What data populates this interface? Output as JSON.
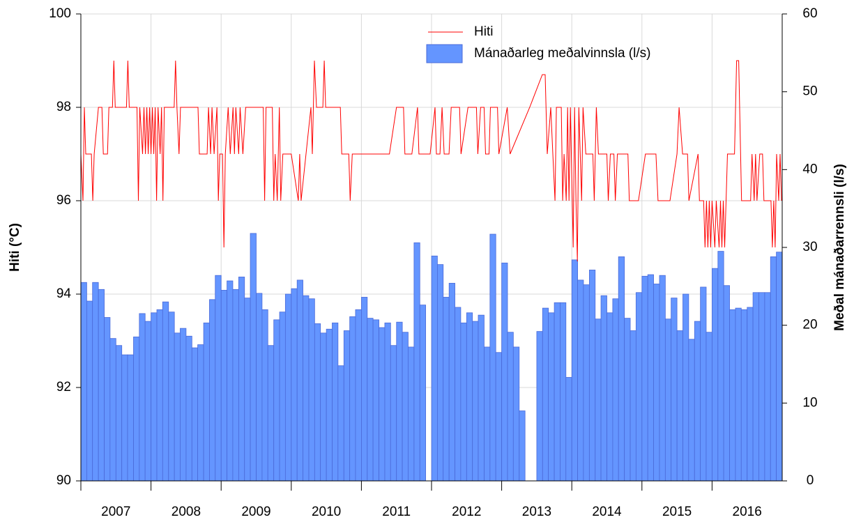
{
  "chart_data": {
    "type": "combo",
    "y_label": "Hiti (°C)",
    "y2_label": "Meðal mánaðarrennsli (l/s)",
    "xlim": [
      2007,
      2017
    ],
    "xticks": [
      {
        "value": 2007.5,
        "label": "2007"
      },
      {
        "value": 2008.5,
        "label": "2008"
      },
      {
        "value": 2009.5,
        "label": "2009"
      },
      {
        "value": 2010.5,
        "label": "2010"
      },
      {
        "value": 2011.5,
        "label": "2011"
      },
      {
        "value": 2012.5,
        "label": "2012"
      },
      {
        "value": 2013.5,
        "label": "2013"
      },
      {
        "value": 2014.5,
        "label": "2014"
      },
      {
        "value": 2015.5,
        "label": "2015"
      },
      {
        "value": 2016.5,
        "label": "2016"
      }
    ],
    "xgrid": [
      2007,
      2008,
      2009,
      2010,
      2011,
      2012,
      2013,
      2014,
      2015,
      2016
    ],
    "ylim": [
      90,
      100
    ],
    "yticks": [
      90,
      92,
      94,
      96,
      98,
      100
    ],
    "y2lim": [
      0,
      60
    ],
    "y2ticks": [
      0,
      10,
      20,
      30,
      40,
      50,
      60
    ],
    "grid": true,
    "legend": "top",
    "series": [
      {
        "name": "Hiti",
        "type": "line",
        "color": "#ff0000",
        "axis": "y",
        "x": [
          2007.0,
          2007.03,
          2007.05,
          2007.07,
          2007.15,
          2007.17,
          2007.19,
          2007.25,
          2007.3,
          2007.32,
          2007.38,
          2007.4,
          2007.45,
          2007.47,
          2007.49,
          2007.65,
          2007.67,
          2007.69,
          2007.8,
          2007.82,
          2007.84,
          2007.88,
          2007.9,
          2007.92,
          2007.94,
          2007.96,
          2007.98,
          2008.0,
          2008.02,
          2008.04,
          2008.06,
          2008.08,
          2008.1,
          2008.13,
          2008.15,
          2008.17,
          2008.19,
          2008.33,
          2008.35,
          2008.37,
          2008.4,
          2008.42,
          2008.67,
          2008.69,
          2008.8,
          2008.82,
          2008.85,
          2008.87,
          2008.9,
          2008.94,
          2008.96,
          2008.98,
          2009.02,
          2009.04,
          2009.06,
          2009.1,
          2009.13,
          2009.17,
          2009.19,
          2009.21,
          2009.25,
          2009.27,
          2009.31,
          2009.35,
          2009.6,
          2009.62,
          2009.64,
          2009.73,
          2009.75,
          2009.77,
          2009.8,
          2009.83,
          2009.85,
          2009.88,
          2010.0,
          2010.1,
          2010.12,
          2010.14,
          2010.28,
          2010.3,
          2010.33,
          2010.36,
          2010.45,
          2010.47,
          2010.49,
          2010.7,
          2010.72,
          2010.82,
          2010.84,
          2010.87,
          2011.4,
          2011.5,
          2011.6,
          2011.62,
          2011.72,
          2011.8,
          2011.82,
          2011.98,
          2012.05,
          2012.07,
          2012.12,
          2012.15,
          2012.18,
          2012.25,
          2012.28,
          2012.4,
          2012.42,
          2012.52,
          2012.64,
          2012.66,
          2012.7,
          2012.75,
          2012.77,
          2012.82,
          2012.84,
          2012.94,
          2012.96,
          2013.08,
          2013.12,
          2013.4,
          2013.58,
          2013.62,
          2013.65,
          2013.7,
          2013.73,
          2013.76,
          2013.78,
          2013.85,
          2013.87,
          2013.89,
          2013.92,
          2013.94,
          2013.96,
          2013.98,
          2014.02,
          2014.04,
          2014.06,
          2014.08,
          2014.1,
          2014.12,
          2014.14,
          2014.16,
          2014.2,
          2014.3,
          2014.32,
          2014.35,
          2014.38,
          2014.5,
          2014.52,
          2014.55,
          2014.6,
          2014.62,
          2014.65,
          2014.8,
          2014.82,
          2014.95,
          2015.05,
          2015.2,
          2015.23,
          2015.4,
          2015.5,
          2015.53,
          2015.58,
          2015.65,
          2015.67,
          2015.8,
          2015.82,
          2015.88,
          2015.9,
          2015.92,
          2015.94,
          2015.96,
          2015.98,
          2016.0,
          2016.04,
          2016.06,
          2016.1,
          2016.12,
          2016.14,
          2016.16,
          2016.18,
          2016.22,
          2016.32,
          2016.35,
          2016.38,
          2016.42,
          2016.55,
          2016.57,
          2016.6,
          2016.62,
          2016.64,
          2016.68,
          2016.72,
          2016.74,
          2016.84,
          2016.86,
          2016.88,
          2016.9,
          2016.92,
          2016.95,
          2016.97,
          2016.99
        ],
        "values": [
          97,
          96,
          98,
          97,
          97,
          96,
          97,
          98,
          98,
          97,
          97,
          98,
          98,
          99,
          98,
          98,
          99,
          98,
          98,
          96,
          98,
          97,
          98,
          97,
          98,
          97,
          98,
          97,
          98,
          97,
          98,
          96,
          98,
          97,
          98,
          96,
          98,
          98,
          99,
          98,
          97,
          98,
          98,
          97,
          97,
          98,
          97,
          98,
          97,
          98,
          96,
          97,
          97,
          95,
          97,
          98,
          97,
          98,
          97,
          98,
          97,
          98,
          97,
          98,
          98,
          96,
          98,
          98,
          96,
          97,
          96,
          98,
          96,
          97,
          97,
          96,
          97,
          96,
          98,
          97,
          99,
          98,
          98,
          99,
          98,
          98,
          97,
          97,
          96,
          97,
          97,
          98,
          98,
          97,
          97,
          98,
          97,
          97,
          98,
          97,
          97,
          98,
          97,
          97,
          98,
          98,
          97,
          98,
          98,
          97,
          98,
          98,
          97,
          97,
          98,
          98,
          97,
          98,
          97,
          98,
          98.7,
          98.7,
          97,
          98,
          97,
          96,
          98,
          98,
          96,
          97,
          96,
          98,
          96,
          98,
          95,
          98,
          96,
          94.7,
          98,
          97,
          96,
          98,
          97,
          97,
          96,
          98,
          97,
          97,
          96,
          97,
          97,
          96,
          97,
          97,
          96,
          96,
          97,
          97,
          96,
          96,
          97,
          98,
          97,
          97,
          96,
          97,
          96,
          96,
          95,
          96,
          95,
          96,
          95,
          96,
          95,
          96,
          95,
          96,
          95,
          96,
          95,
          97,
          97,
          99,
          99,
          96,
          96,
          97,
          96,
          97,
          96,
          97,
          97,
          96,
          96,
          95,
          96,
          95,
          97,
          96,
          97,
          96
        ]
      },
      {
        "name": "Mánaðarleg meðalvinnsla (l/s)",
        "type": "bar",
        "color": "#6495ff",
        "axis": "y2",
        "x": [
          2007.042,
          2007.125,
          2007.208,
          2007.292,
          2007.375,
          2007.458,
          2007.542,
          2007.625,
          2007.708,
          2007.792,
          2007.875,
          2007.958,
          2008.042,
          2008.125,
          2008.208,
          2008.292,
          2008.375,
          2008.458,
          2008.542,
          2008.625,
          2008.708,
          2008.792,
          2008.875,
          2008.958,
          2009.042,
          2009.125,
          2009.208,
          2009.292,
          2009.375,
          2009.458,
          2009.542,
          2009.625,
          2009.708,
          2009.792,
          2009.875,
          2009.958,
          2010.042,
          2010.125,
          2010.208,
          2010.292,
          2010.375,
          2010.458,
          2010.542,
          2010.625,
          2010.708,
          2010.792,
          2010.875,
          2010.958,
          2011.042,
          2011.125,
          2011.208,
          2011.292,
          2011.375,
          2011.458,
          2011.542,
          2011.625,
          2011.708,
          2011.792,
          2011.875,
          2011.958,
          2012.042,
          2012.125,
          2012.208,
          2012.292,
          2012.375,
          2012.458,
          2012.542,
          2012.625,
          2012.708,
          2012.792,
          2012.875,
          2012.958,
          2013.042,
          2013.125,
          2013.208,
          2013.292,
          2013.375,
          2013.458,
          2013.542,
          2013.625,
          2013.708,
          2013.792,
          2013.875,
          2013.958,
          2014.042,
          2014.125,
          2014.208,
          2014.292,
          2014.375,
          2014.458,
          2014.542,
          2014.625,
          2014.708,
          2014.792,
          2014.875,
          2014.958,
          2015.042,
          2015.125,
          2015.208,
          2015.292,
          2015.375,
          2015.458,
          2015.542,
          2015.625,
          2015.708,
          2015.792,
          2015.875,
          2015.958,
          2016.042,
          2016.125,
          2016.208,
          2016.292,
          2016.375,
          2016.458,
          2016.542,
          2016.625,
          2016.708,
          2016.792,
          2016.875,
          2016.958
        ],
        "values": [
          25.5,
          23.1,
          25.5,
          24.6,
          21,
          18.3,
          17.4,
          16.2,
          16.2,
          18.5,
          21.5,
          20.5,
          21.6,
          22,
          23,
          21.7,
          19,
          19.6,
          18.6,
          17.1,
          17.5,
          20.3,
          23.3,
          26.4,
          24.5,
          25.7,
          24.6,
          26.2,
          23.5,
          31.8,
          24.1,
          22,
          17.4,
          20.7,
          21.7,
          24,
          24.7,
          25.8,
          23.8,
          23.4,
          20.2,
          19,
          19.5,
          20.3,
          14.8,
          19.3,
          21.1,
          22,
          23.6,
          20.9,
          20.7,
          19.7,
          20.3,
          17.4,
          20.4,
          19.1,
          17.2,
          30.6,
          22.6,
          0,
          28.9,
          27.8,
          23.6,
          25.4,
          22.3,
          20.3,
          21.6,
          20.5,
          21.3,
          17.2,
          31.7,
          16.5,
          28,
          19.1,
          17.2,
          9,
          0,
          0,
          19.2,
          22.2,
          21.6,
          22.9,
          22.9,
          13.3,
          28.4,
          25.8,
          25.2,
          27.1,
          20.8,
          23.8,
          21.6,
          23.4,
          28.8,
          20.9,
          19.3,
          24.2,
          26.3,
          26.5,
          25.3,
          26.4,
          20.8,
          23.5,
          19.3,
          24,
          18.2,
          20.5,
          24.9,
          19.1,
          27.3,
          29.5,
          25.1,
          22,
          22.2,
          22,
          22.3,
          24.2,
          24.2,
          24.2,
          28.8,
          29.4
        ]
      }
    ]
  }
}
